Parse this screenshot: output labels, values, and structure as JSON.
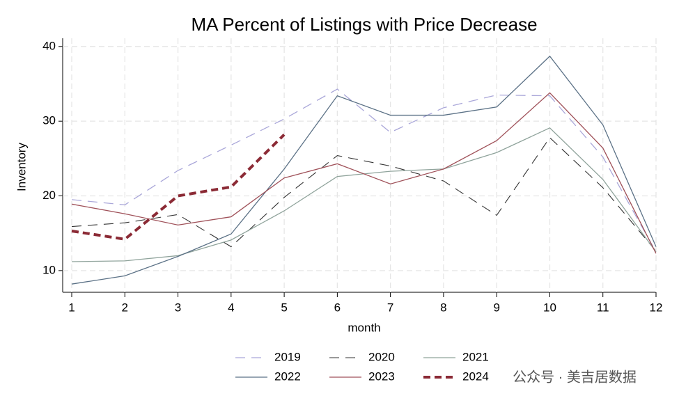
{
  "chart_data": {
    "type": "line",
    "title": "MA  Percent of Listings with Price Decrease",
    "xlabel": "month",
    "ylabel": "Inventory",
    "x": [
      1,
      2,
      3,
      4,
      5,
      6,
      7,
      8,
      9,
      10,
      11,
      12
    ],
    "xlim": [
      1,
      12
    ],
    "xticks": [
      1,
      2,
      3,
      4,
      5,
      6,
      7,
      8,
      9,
      10,
      11,
      12
    ],
    "ylim": [
      7.1,
      41.1
    ],
    "yticks": [
      10,
      20,
      30,
      40
    ],
    "grid": true,
    "legend": "bottom",
    "series": [
      {
        "name": "2019",
        "color": "#aaa7d9",
        "style": "dashed",
        "width": 1.3,
        "values": [
          19.5,
          18.8,
          23.4,
          26.8,
          30.3,
          34.3,
          28.5,
          31.8,
          33.5,
          33.4,
          25.2,
          12.5
        ]
      },
      {
        "name": "2020",
        "color": "#333333",
        "style": "dashed",
        "width": 1.1,
        "values": [
          15.9,
          16.4,
          17.5,
          13.2,
          19.8,
          25.4,
          24.0,
          22.0,
          17.4,
          27.8,
          21.1,
          12.6
        ]
      },
      {
        "name": "2021",
        "color": "#8fa39b",
        "style": "solid",
        "width": 1.3,
        "values": [
          11.2,
          11.3,
          12.0,
          14.1,
          18.0,
          22.6,
          23.3,
          23.6,
          25.8,
          29.1,
          22.2,
          12.5
        ]
      },
      {
        "name": "2022",
        "color": "#5b7186",
        "style": "solid",
        "width": 1.3,
        "values": [
          8.2,
          9.3,
          11.9,
          14.9,
          23.6,
          33.4,
          30.8,
          30.8,
          31.9,
          38.7,
          29.5,
          13.2
        ]
      },
      {
        "name": "2023",
        "color": "#a0525a",
        "style": "solid",
        "width": 1.3,
        "values": [
          18.9,
          17.6,
          16.1,
          17.2,
          22.4,
          24.3,
          21.6,
          23.6,
          27.4,
          33.8,
          26.4,
          12.3
        ]
      },
      {
        "name": "2024",
        "color": "#8b2a35",
        "style": "dashed",
        "width": 4,
        "values": [
          15.3,
          14.2,
          20.0,
          21.2,
          28.2,
          null,
          null,
          null,
          null,
          null,
          null,
          null
        ]
      }
    ]
  },
  "watermark": "公众号 · 美吉居数据"
}
